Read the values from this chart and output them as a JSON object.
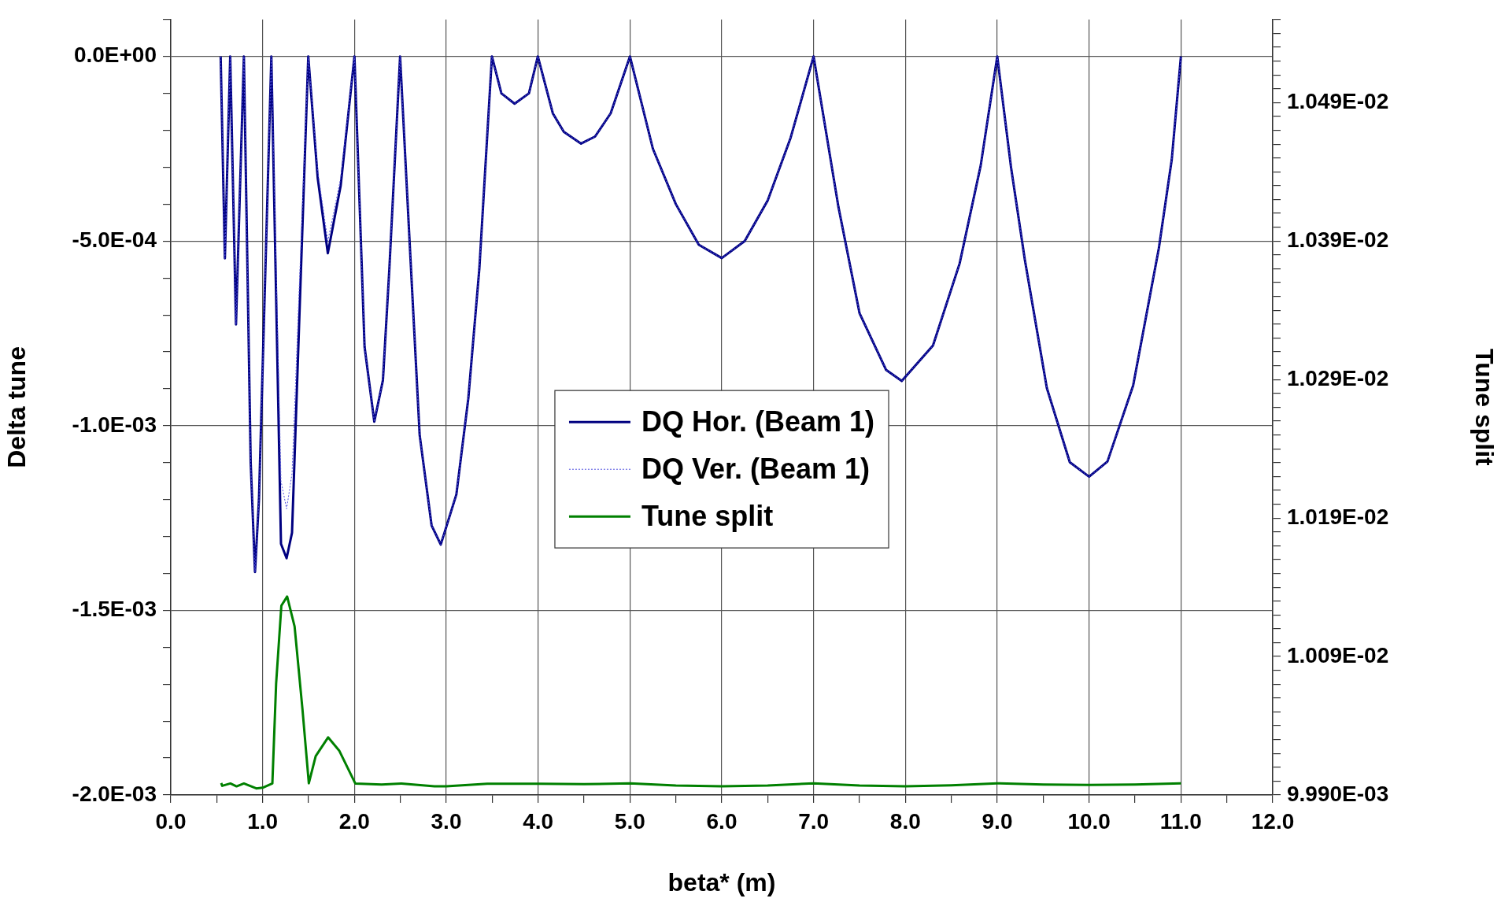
{
  "chart_data": {
    "type": "line",
    "xlabel": "beta* (m)",
    "ylabel": "Delta tune",
    "y2label": "Tune split",
    "xlim": [
      0,
      12
    ],
    "xticks": [
      {
        "value": 0,
        "label": "0.0"
      },
      {
        "value": 0.5,
        "label": null
      },
      {
        "value": 1,
        "label": "1.0"
      },
      {
        "value": 1.5,
        "label": null
      },
      {
        "value": 2,
        "label": "2.0"
      },
      {
        "value": 2.5,
        "label": null
      },
      {
        "value": 3,
        "label": "3.0"
      },
      {
        "value": 3.5,
        "label": null
      },
      {
        "value": 4,
        "label": "4.0"
      },
      {
        "value": 4.5,
        "label": null
      },
      {
        "value": 5,
        "label": "5.0"
      },
      {
        "value": 5.5,
        "label": null
      },
      {
        "value": 6,
        "label": "6.0"
      },
      {
        "value": 6.5,
        "label": null
      },
      {
        "value": 7,
        "label": "7.0"
      },
      {
        "value": 7.5,
        "label": null
      },
      {
        "value": 8,
        "label": "8.0"
      },
      {
        "value": 8.5,
        "label": null
      },
      {
        "value": 9,
        "label": "9.0"
      },
      {
        "value": 9.5,
        "label": null
      },
      {
        "value": 10,
        "label": "10.0"
      },
      {
        "value": 10.5,
        "label": null
      },
      {
        "value": 11,
        "label": "11.0"
      },
      {
        "value": 11.5,
        "label": null
      },
      {
        "value": 12,
        "label": "12.0"
      }
    ],
    "ylim": [
      -0.002,
      0.0001
    ],
    "yticks": [
      {
        "value": -0.002,
        "label": "-2.0E-03"
      },
      {
        "value": -0.0019,
        "label": null
      },
      {
        "value": -0.0018,
        "label": null
      },
      {
        "value": -0.0017,
        "label": null
      },
      {
        "value": -0.0016,
        "label": null
      },
      {
        "value": -0.0015,
        "label": "-1.5E-03"
      },
      {
        "value": -0.0014,
        "label": null
      },
      {
        "value": -0.0013,
        "label": null
      },
      {
        "value": -0.0012,
        "label": null
      },
      {
        "value": -0.0011,
        "label": null
      },
      {
        "value": -0.001,
        "label": "-1.0E-03"
      },
      {
        "value": -0.0009,
        "label": null
      },
      {
        "value": -0.0008,
        "label": null
      },
      {
        "value": -0.0007,
        "label": null
      },
      {
        "value": -0.0006,
        "label": null
      },
      {
        "value": -0.0005,
        "label": "-5.0E-04"
      },
      {
        "value": -0.0004,
        "label": null
      },
      {
        "value": -0.0003,
        "label": null
      },
      {
        "value": -0.0002,
        "label": null
      },
      {
        "value": -0.0001,
        "label": null
      },
      {
        "value": 0,
        "label": "0.0E+00"
      },
      {
        "value": 0.0001,
        "label": null
      }
    ],
    "y2lim": [
      0.00999,
      0.01055
    ],
    "y2ticks": [
      {
        "value": 0.00999,
        "label": "9.990E-03"
      },
      {
        "value": 0.01,
        "label": null
      },
      {
        "value": 0.01001,
        "label": null
      },
      {
        "value": 0.01002,
        "label": null
      },
      {
        "value": 0.01003,
        "label": null
      },
      {
        "value": 0.01004,
        "label": null
      },
      {
        "value": 0.01005,
        "label": null
      },
      {
        "value": 0.01006,
        "label": null
      },
      {
        "value": 0.01007,
        "label": null
      },
      {
        "value": 0.01008,
        "label": null
      },
      {
        "value": 0.01009,
        "label": "1.009E-02"
      },
      {
        "value": 0.0101,
        "label": null
      },
      {
        "value": 0.01011,
        "label": null
      },
      {
        "value": 0.01012,
        "label": null
      },
      {
        "value": 0.01013,
        "label": null
      },
      {
        "value": 0.01014,
        "label": null
      },
      {
        "value": 0.01015,
        "label": null
      },
      {
        "value": 0.01016,
        "label": null
      },
      {
        "value": 0.01017,
        "label": null
      },
      {
        "value": 0.01018,
        "label": null
      },
      {
        "value": 0.01019,
        "label": "1.019E-02"
      },
      {
        "value": 0.0102,
        "label": null
      },
      {
        "value": 0.01021,
        "label": null
      },
      {
        "value": 0.01022,
        "label": null
      },
      {
        "value": 0.01023,
        "label": null
      },
      {
        "value": 0.01024,
        "label": null
      },
      {
        "value": 0.01025,
        "label": null
      },
      {
        "value": 0.01026,
        "label": null
      },
      {
        "value": 0.01027,
        "label": null
      },
      {
        "value": 0.01028,
        "label": null
      },
      {
        "value": 0.01029,
        "label": "1.029E-02"
      },
      {
        "value": 0.0103,
        "label": null
      },
      {
        "value": 0.01031,
        "label": null
      },
      {
        "value": 0.01032,
        "label": null
      },
      {
        "value": 0.01033,
        "label": null
      },
      {
        "value": 0.01034,
        "label": null
      },
      {
        "value": 0.01035,
        "label": null
      },
      {
        "value": 0.01036,
        "label": null
      },
      {
        "value": 0.01037,
        "label": null
      },
      {
        "value": 0.01038,
        "label": null
      },
      {
        "value": 0.01039,
        "label": "1.039E-02"
      },
      {
        "value": 0.0104,
        "label": null
      },
      {
        "value": 0.01041,
        "label": null
      },
      {
        "value": 0.01042,
        "label": null
      },
      {
        "value": 0.01043,
        "label": null
      },
      {
        "value": 0.01044,
        "label": null
      },
      {
        "value": 0.01045,
        "label": null
      },
      {
        "value": 0.01046,
        "label": null
      },
      {
        "value": 0.01047,
        "label": null
      },
      {
        "value": 0.01048,
        "label": null
      },
      {
        "value": 0.01049,
        "label": "1.049E-02"
      },
      {
        "value": 0.0105,
        "label": null
      },
      {
        "value": 0.01051,
        "label": null
      },
      {
        "value": 0.01052,
        "label": null
      },
      {
        "value": 0.01053,
        "label": null
      },
      {
        "value": 0.01054,
        "label": null
      },
      {
        "value": 0.01055,
        "label": null
      }
    ],
    "grid": true,
    "legend": "center",
    "marker": "none",
    "series": [
      {
        "name": "DQ Hor. (Beam 1)",
        "color": "#000080",
        "line_style": "solid",
        "x": [
          0.543,
          0.589,
          0.647,
          0.71,
          0.796,
          0.87,
          0.917,
          0.96,
          1.095,
          1.2,
          1.261,
          1.32,
          1.497,
          1.6,
          1.71,
          1.85,
          2.0,
          2.11,
          2.216,
          2.31,
          2.38,
          2.497,
          2.61,
          2.71,
          2.84,
          2.94,
          3.11,
          3.24,
          3.36,
          3.497,
          3.6,
          3.744,
          3.9,
          3.997,
          4.16,
          4.28,
          4.468,
          4.62,
          4.79,
          5.0,
          5.25,
          5.5,
          5.75,
          6.0,
          6.25,
          6.5,
          6.75,
          7.0,
          7.27,
          7.5,
          7.79,
          7.96,
          8.3,
          8.59,
          8.82,
          9.0,
          9.15,
          9.3,
          9.54,
          9.79,
          10.0,
          10.2,
          10.48,
          10.76,
          10.9,
          11.0
        ],
        "values": [
          0,
          -0.000547,
          0,
          -0.000726,
          0,
          -0.0011,
          -0.001396,
          -0.0012,
          0,
          -0.00132,
          -0.001359,
          -0.00129,
          0,
          -0.00033,
          -0.000533,
          -0.00035,
          0,
          -0.000786,
          -0.000989,
          -0.000877,
          -0.000575,
          0,
          -0.000547,
          -0.001025,
          -0.00127,
          -0.001322,
          -0.001186,
          -0.000926,
          -0.000575,
          0,
          -0.0001,
          -0.000128,
          -0.0001,
          0,
          -0.000154,
          -0.000204,
          -0.000236,
          -0.000217,
          -0.000154,
          0,
          -0.00025,
          -0.0004,
          -0.00051,
          -0.000546,
          -0.0005,
          -0.00039,
          -0.00022,
          0,
          -0.000407,
          -0.000695,
          -0.000849,
          -0.000879,
          -0.000783,
          -0.000561,
          -0.000295,
          0,
          -0.0003,
          -0.00055,
          -0.000898,
          -0.001099,
          -0.001138,
          -0.001097,
          -0.000891,
          -0.000519,
          -0.00028,
          0
        ]
      },
      {
        "name": "DQ Ver. (Beam 1)",
        "color": "#5050e0",
        "line_style": "dotted",
        "x": [
          0.543,
          0.589,
          0.647,
          0.71,
          0.796,
          0.87,
          0.917,
          0.96,
          1.095,
          1.2,
          1.261,
          1.32,
          1.497,
          1.6,
          1.71,
          1.85,
          2.0,
          2.11,
          2.216,
          2.31,
          2.38,
          2.497,
          2.61,
          2.71,
          2.84,
          2.94,
          3.11,
          3.24,
          3.36,
          3.497,
          3.6,
          3.744,
          3.9,
          3.997,
          4.16,
          4.28,
          4.468,
          4.62,
          4.79,
          5.0,
          5.25,
          5.5,
          5.75,
          6.0,
          6.25,
          6.5,
          6.75,
          7.0,
          7.27,
          7.5,
          7.79,
          7.96,
          8.3,
          8.59,
          8.82,
          9.0,
          9.15,
          9.3,
          9.54,
          9.79,
          10.0,
          10.2,
          10.48,
          10.76,
          10.9,
          11.0
        ],
        "values": [
          0,
          -0.000547,
          0,
          -0.000726,
          0,
          -0.0011,
          -0.001396,
          -0.0012,
          0,
          -0.00115,
          -0.001225,
          -0.00113,
          0,
          -0.00031,
          -0.0005,
          -0.00033,
          0,
          -0.000786,
          -0.000989,
          -0.000877,
          -0.000575,
          0,
          -0.000547,
          -0.001025,
          -0.00127,
          -0.001322,
          -0.001186,
          -0.000926,
          -0.000575,
          0,
          -0.0001,
          -0.000128,
          -0.0001,
          0,
          -0.000154,
          -0.000204,
          -0.000236,
          -0.000217,
          -0.000154,
          0,
          -0.00025,
          -0.0004,
          -0.00051,
          -0.000546,
          -0.0005,
          -0.00039,
          -0.00022,
          0,
          -0.000407,
          -0.000695,
          -0.000849,
          -0.000879,
          -0.000783,
          -0.000561,
          -0.000295,
          0,
          -0.0003,
          -0.00055,
          -0.000898,
          -0.001099,
          -0.001138,
          -0.001097,
          -0.000891,
          -0.000519,
          -0.00028,
          0
        ]
      },
      {
        "name": "Tune split",
        "color": "#008000",
        "line_style": "solid",
        "axis": "y2",
        "x": [
          0.549,
          0.56,
          0.649,
          0.716,
          0.796,
          0.931,
          1.0,
          1.106,
          1.147,
          1.204,
          1.267,
          1.348,
          1.434,
          1.503,
          1.578,
          1.713,
          1.836,
          2.009,
          2.296,
          2.511,
          2.871,
          3.0,
          3.446,
          4.0,
          4.5,
          5.0,
          5.5,
          6.0,
          6.5,
          7.0,
          7.5,
          8.0,
          8.5,
          9.0,
          9.5,
          10.0,
          10.5,
          11.0
        ],
        "values": [
          0.0099986,
          0.0099966,
          0.0099983,
          0.0099962,
          0.0099983,
          0.0099947,
          0.0099952,
          0.0099983,
          0.0100705,
          0.0101267,
          0.0101333,
          0.0101117,
          0.0100518,
          0.0099984,
          0.0100181,
          0.0100316,
          0.0100218,
          0.0099983,
          0.0099975,
          0.0099983,
          0.0099963,
          0.0099963,
          0.0099981,
          0.0099981,
          0.0099978,
          0.0099984,
          0.0099968,
          0.0099962,
          0.0099968,
          0.0099984,
          0.0099968,
          0.0099962,
          0.009997,
          0.0099984,
          0.0099975,
          0.0099972,
          0.0099976,
          0.0099984
        ]
      }
    ]
  }
}
